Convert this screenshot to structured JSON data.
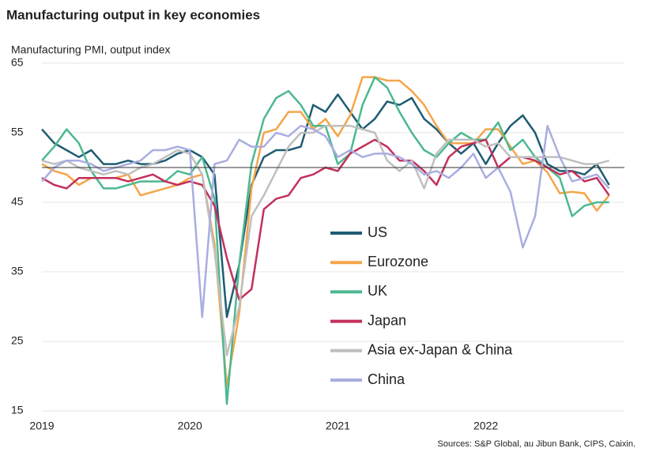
{
  "chart_data": {
    "type": "line",
    "title": "Manufacturing output in key economies",
    "y_label": "Manufacturing PMI, output index",
    "source": "Sources: S&P Global, au Jibun Bank, CIPS, Caixin.",
    "categories": [
      "2019",
      null,
      null,
      null,
      null,
      null,
      null,
      null,
      null,
      null,
      null,
      null,
      "2020",
      null,
      null,
      null,
      null,
      null,
      null,
      null,
      null,
      null,
      null,
      null,
      "2021",
      null,
      null,
      null,
      null,
      null,
      null,
      null,
      null,
      null,
      null,
      null,
      "2022",
      null,
      null,
      null,
      null,
      null,
      null,
      null,
      null,
      null,
      null
    ],
    "ylim": [
      15,
      65
    ],
    "yticks": [
      15,
      25,
      35,
      45,
      55,
      65
    ],
    "grid": true,
    "reference_line": 50,
    "series": [
      {
        "name": "US",
        "color": "#1f5c73",
        "values": [
          55.5,
          53.5,
          52.5,
          51.5,
          52.5,
          50.5,
          50.5,
          51,
          50.5,
          50.5,
          51,
          52,
          52.5,
          51.5,
          49,
          28.5,
          36,
          47.5,
          51.5,
          52.5,
          52.5,
          53,
          59,
          58,
          60.5,
          58,
          55.5,
          57,
          59.5,
          59,
          60,
          57,
          55.5,
          53.5,
          52,
          53.5,
          50.5,
          53.5,
          56,
          57.5,
          55,
          50.5,
          49.5,
          49.5,
          49,
          50.5,
          47.5
        ]
      },
      {
        "name": "Eurozone",
        "color": "#f5a54a",
        "values": [
          50.5,
          49.5,
          49,
          47.5,
          48.5,
          48.5,
          48.5,
          49,
          46,
          46.5,
          47,
          47.5,
          48.5,
          49,
          39,
          18.5,
          29,
          47,
          55,
          55.5,
          58,
          58,
          55.5,
          57,
          54.5,
          57.5,
          63,
          63,
          62.5,
          62.5,
          61,
          59,
          56,
          53.5,
          53.5,
          53.5,
          55.5,
          55.5,
          53,
          50.5,
          51,
          49.3,
          46.3,
          46.5,
          46.3,
          43.8,
          46
        ]
      },
      {
        "name": "UK",
        "color": "#4db88f",
        "values": [
          51,
          53,
          55.5,
          53.5,
          49.5,
          47,
          47,
          47.5,
          48,
          48,
          48,
          49.5,
          49,
          51.5,
          45.5,
          16,
          36,
          50.5,
          57,
          60,
          61,
          59,
          56,
          56,
          50.5,
          52,
          59,
          63,
          61.5,
          58,
          55,
          52.5,
          51.5,
          53.5,
          55,
          54,
          54,
          56.5,
          52.5,
          54,
          51.5,
          50,
          48.5,
          43,
          44.5,
          45,
          45
        ]
      },
      {
        "name": "Japan",
        "color": "#c3305b",
        "values": [
          48.5,
          47.5,
          47,
          48.5,
          48.5,
          48.5,
          48.5,
          48,
          48.5,
          49,
          48,
          47.5,
          48,
          47.5,
          44.5,
          37,
          31,
          32.5,
          44,
          45.5,
          46,
          48.5,
          49,
          50,
          49.5,
          52,
          53,
          54,
          53,
          51,
          51,
          49.5,
          47.5,
          51.5,
          53,
          53.5,
          54,
          50,
          51.5,
          51.5,
          51,
          50,
          49,
          49.5,
          48,
          48.5,
          46
        ]
      },
      {
        "name": "Asia ex-Japan & China",
        "color": "#bfbfbf",
        "values": [
          51,
          50.5,
          51,
          50,
          49.5,
          49,
          49.5,
          49,
          50,
          50.5,
          51.5,
          52.5,
          52,
          49,
          38,
          23,
          30,
          43,
          46,
          49.5,
          53,
          55,
          55,
          56,
          56,
          56,
          55.5,
          55,
          51,
          49.5,
          51,
          47,
          52,
          54,
          54,
          54,
          53,
          53.5,
          51.5,
          51.5,
          51.5,
          51.5,
          51.5,
          51,
          50.5,
          50.5,
          51
        ]
      },
      {
        "name": "China",
        "color": "#a9aee0",
        "values": [
          48,
          50,
          51,
          51,
          50.5,
          49.5,
          50,
          50.5,
          51,
          52.5,
          52.5,
          53,
          52.5,
          28.5,
          50.5,
          51,
          54,
          53,
          53,
          55,
          54.5,
          56,
          55.5,
          54.5,
          51.5,
          52.5,
          51.5,
          52,
          52,
          51.5,
          50.5,
          49,
          49.5,
          48.5,
          50,
          52,
          48.5,
          50,
          46.5,
          38.5,
          43,
          56,
          51.5,
          48,
          48.5,
          49,
          47
        ]
      }
    ]
  }
}
